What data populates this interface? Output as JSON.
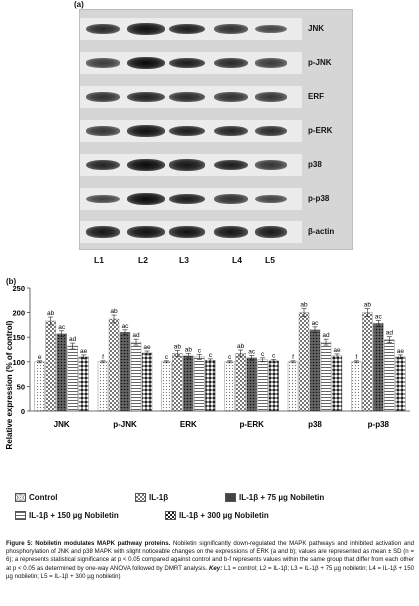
{
  "panel_a_label": "(a)",
  "panel_b_label": "(b)",
  "blot_labels": [
    "JNK",
    "p-JNK",
    "ERF",
    "p-ERK",
    "p38",
    "p-p38",
    "β-actin"
  ],
  "lane_labels": [
    "L1",
    "L2",
    "L3",
    "L4",
    "L5"
  ],
  "legend": [
    {
      "label": "Control",
      "pattern": "dots"
    },
    {
      "label": "IL-1β",
      "pattern": "checker"
    },
    {
      "label": "IL-1β + 75 µg Nobiletin",
      "pattern": "dark-dots"
    },
    {
      "label": "IL-1β + 150 µg Nobiletin",
      "pattern": "hlines"
    },
    {
      "label": "IL-1β + 300 µg Nobiletin",
      "pattern": "diamonds"
    }
  ],
  "caption": {
    "figure_label": "Figure 5:",
    "title": "Nobiletin modulates MAPK pathway proteins.",
    "body": "Nobiletin significantly down-regulated the MAPK pathways and inhibited activation and phosphorylation of JNK and p38 MAPK with slight noticeable changes on the expressions of ERK (a and b); values are represented as mean ± SD (n = 6); a represents statistical significance at p < 0.05 compared against control and b-f represents values within the same group that differ from each other at p < 0.05 as determined by one-way ANOVA followed by DMRT analysis.",
    "key_label": "Key:",
    "key_text": "L1 = control; L2 = IL-1β; L3 = IL-1β + 75 µg nobiletin; L4 = IL-1β + 150 µg nobiletin; L5 = IL-1β + 300 µg nobiletin)"
  },
  "chart_data": {
    "type": "bar",
    "title": "",
    "xlabel": "",
    "ylabel": "Relative  expression (% of control)",
    "ylim": [
      0,
      250
    ],
    "yticks": [
      0,
      50,
      100,
      150,
      200,
      250
    ],
    "categories": [
      "JNK",
      "p-JNK",
      "ERK",
      "p-ERK",
      "p38",
      "p-p38"
    ],
    "series": [
      {
        "name": "Control",
        "values": [
          100,
          100,
          100,
          100,
          100,
          100
        ],
        "errors": [
          2,
          2,
          2,
          2,
          2,
          2
        ],
        "letters": [
          "e",
          "f",
          "c",
          "c",
          "f",
          "f"
        ]
      },
      {
        "name": "IL-1β",
        "values": [
          183,
          187,
          117,
          117,
          200,
          200
        ],
        "errors": [
          8,
          8,
          6,
          7,
          8,
          8
        ],
        "letters": [
          "ab",
          "ab",
          "ab",
          "ab",
          "ab",
          "ab"
        ]
      },
      {
        "name": "IL-1β + 75 µg Nobiletin",
        "values": [
          157,
          160,
          112,
          108,
          165,
          178
        ],
        "errors": [
          6,
          5,
          5,
          5,
          6,
          6
        ],
        "letters": [
          "ac",
          "ac",
          "ab",
          "ac",
          "ac",
          "ac"
        ]
      },
      {
        "name": "IL-1β + 150 µg Nobiletin",
        "values": [
          132,
          140,
          110,
          104,
          140,
          145
        ],
        "errors": [
          6,
          6,
          5,
          4,
          6,
          6
        ],
        "letters": [
          "ad",
          "ad",
          "c",
          "c",
          "ad",
          "ad"
        ]
      },
      {
        "name": "IL-1β + 300 µg Nobiletin",
        "values": [
          110,
          118,
          103,
          102,
          112,
          110
        ],
        "errors": [
          4,
          4,
          3,
          3,
          4,
          4
        ],
        "letters": [
          "ae",
          "ae",
          "c",
          "c",
          "ae",
          "ae"
        ]
      }
    ]
  }
}
